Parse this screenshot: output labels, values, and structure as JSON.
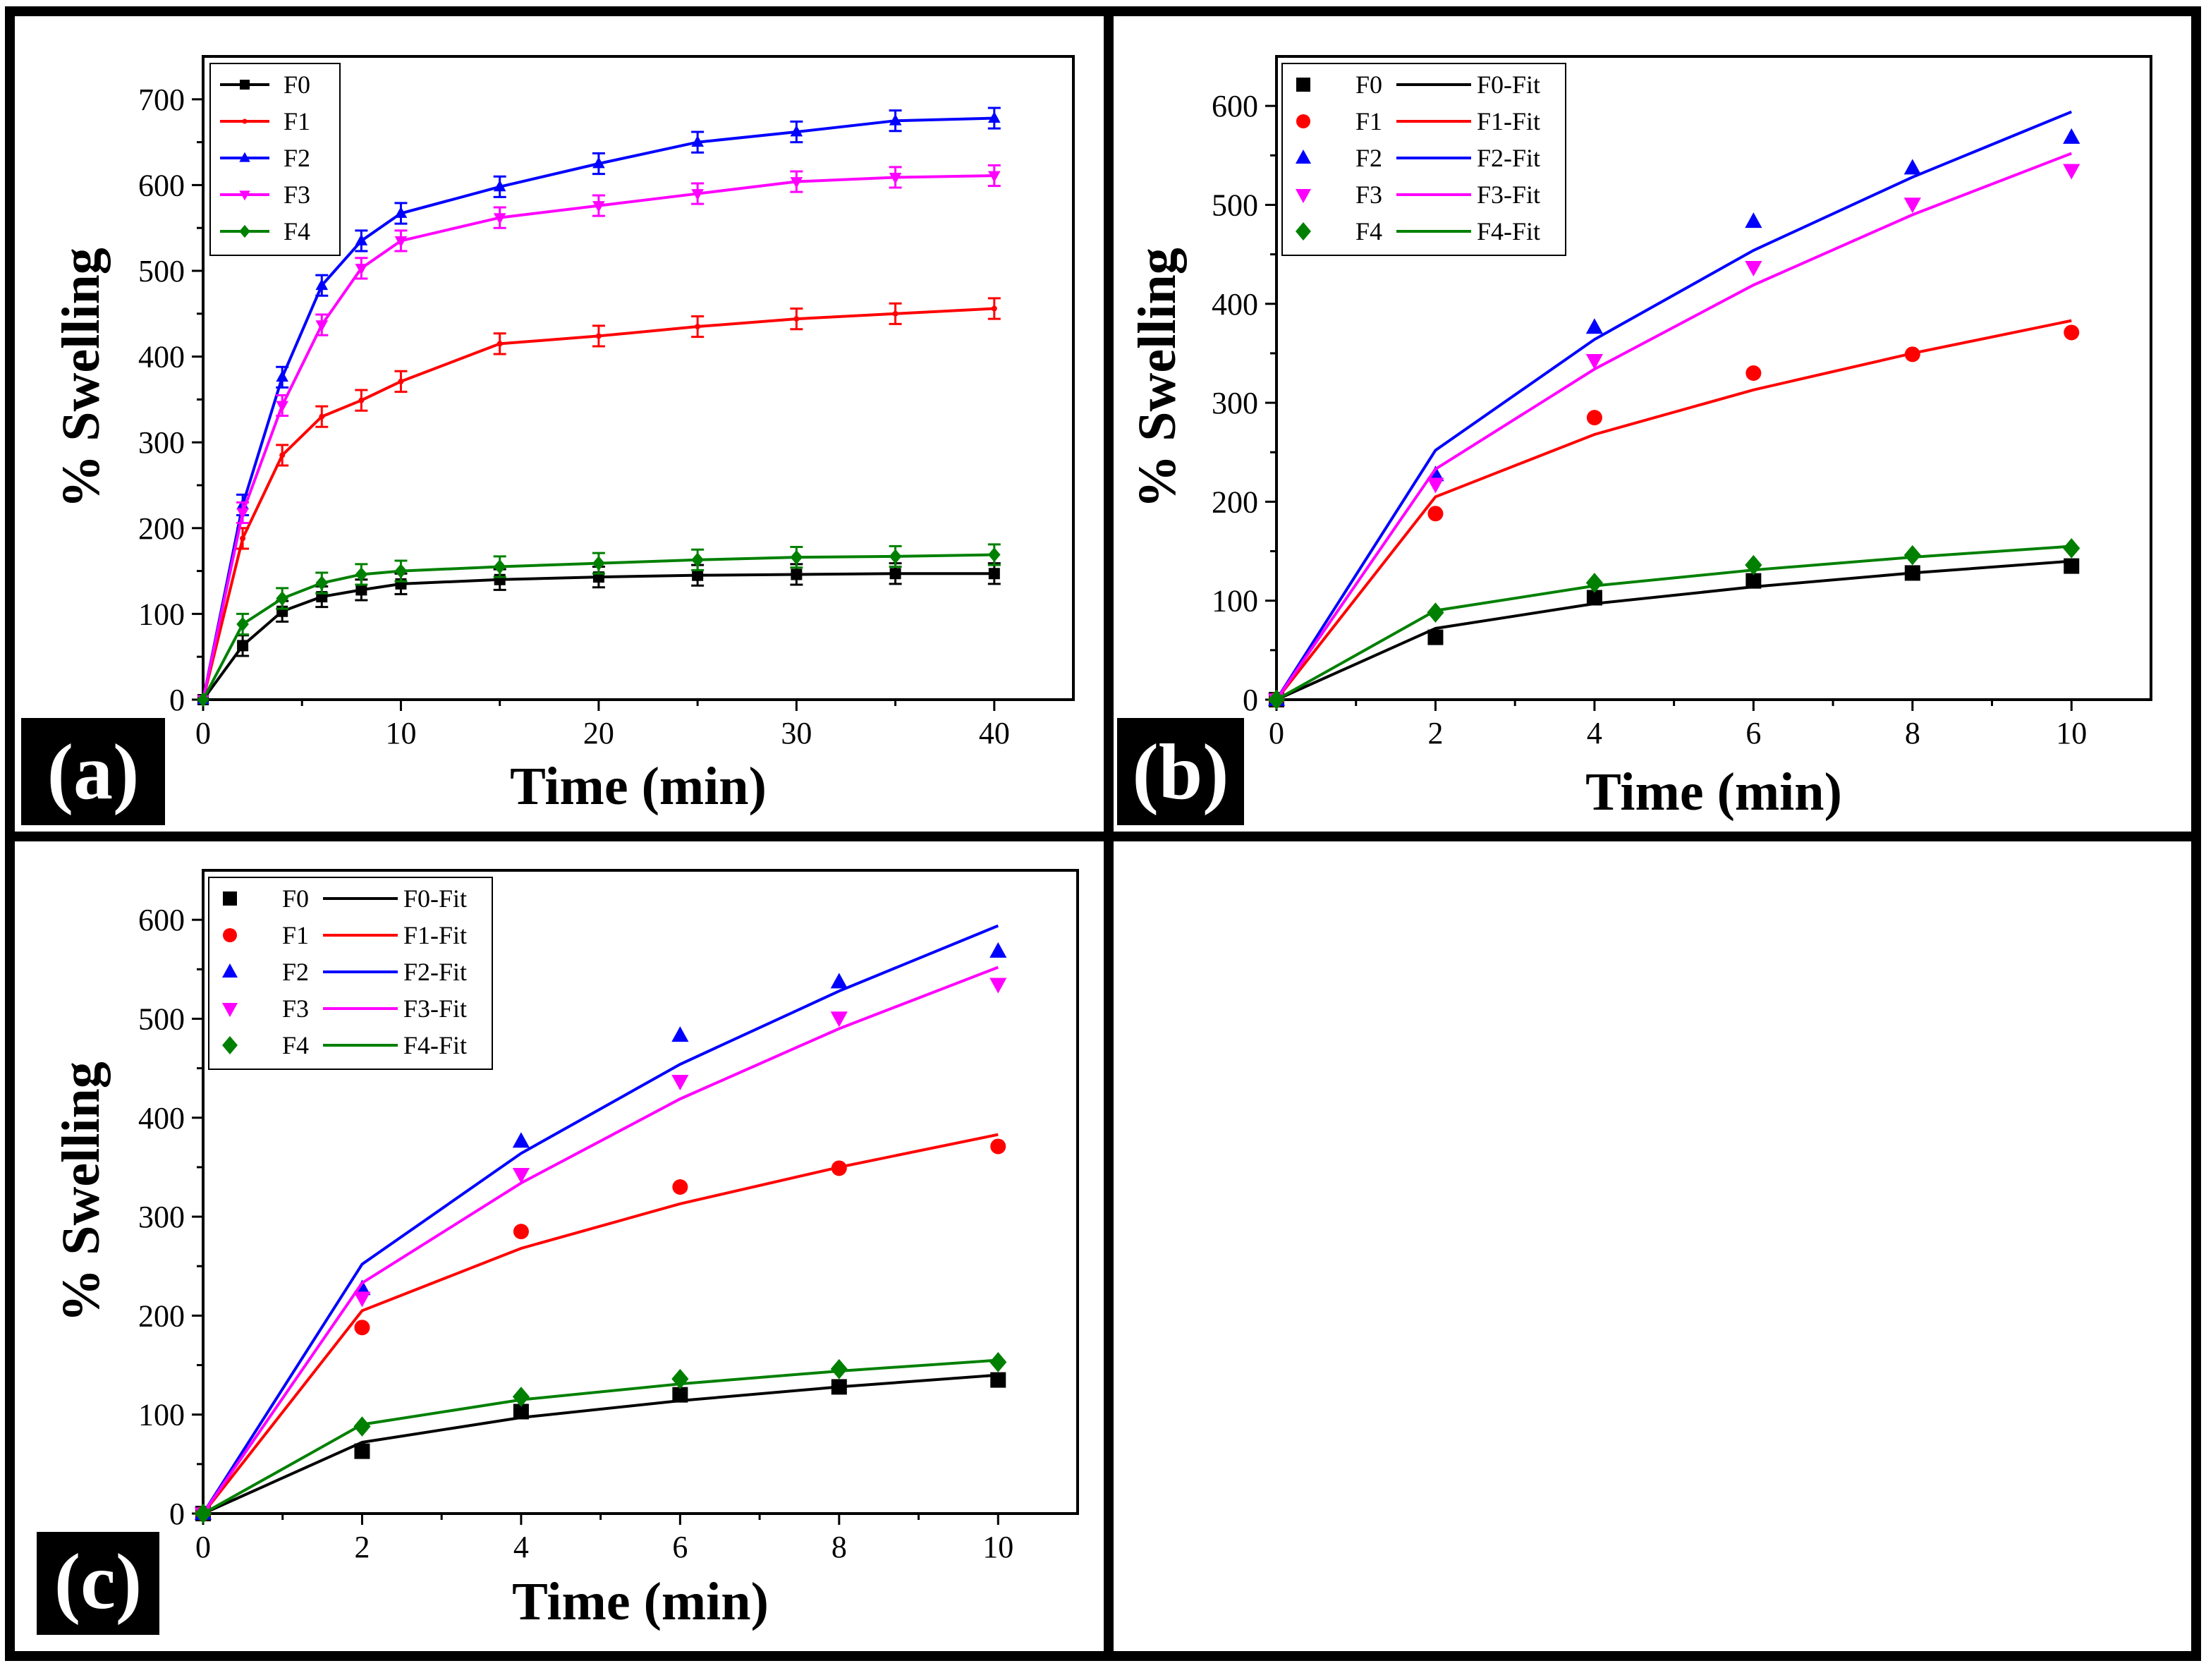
{
  "colors": {
    "F0": "#000000",
    "F1": "#ff0000",
    "F2": "#0000ff",
    "F3": "#ff00ff",
    "F4": "#008000"
  },
  "chart_data": [
    {
      "type": "line",
      "panel_label": "(a)",
      "xlabel": "Time (min)",
      "ylabel": "% Swelling",
      "xlim": [
        0,
        44
      ],
      "ylim": [
        0,
        750
      ],
      "xticks": [
        0,
        10,
        20,
        30,
        40
      ],
      "yticks": [
        0,
        100,
        200,
        300,
        400,
        500,
        600,
        700
      ],
      "legend_position": "top-left",
      "x": [
        0,
        2,
        4,
        6,
        8,
        10,
        15,
        20,
        25,
        30,
        35,
        40
      ],
      "series": [
        {
          "name": "F0",
          "label": "F0",
          "values": [
            0,
            63,
            103,
            120,
            128,
            135,
            140,
            143,
            145,
            146,
            147,
            147
          ],
          "error": 12
        },
        {
          "name": "F1",
          "label": "F1",
          "values": [
            0,
            188,
            285,
            330,
            349,
            371,
            415,
            424,
            435,
            444,
            450,
            456
          ],
          "error": 12
        },
        {
          "name": "F2",
          "label": "F2",
          "values": [
            0,
            227,
            376,
            483,
            535,
            567,
            598,
            625,
            650,
            662,
            675,
            678
          ],
          "error": 12
        },
        {
          "name": "F3",
          "label": "F3",
          "values": [
            0,
            218,
            343,
            437,
            503,
            535,
            562,
            576,
            590,
            604,
            609,
            611
          ],
          "error": 12
        },
        {
          "name": "F4",
          "label": "F4",
          "values": [
            0,
            88,
            118,
            136,
            146,
            150,
            155,
            159,
            163,
            166,
            167,
            169
          ],
          "error": 12
        }
      ]
    },
    {
      "type": "scatter",
      "panel_label": "(b)",
      "xlabel": "Time (min)",
      "ylabel": "% Swelling",
      "xlim": [
        0,
        11
      ],
      "ylim": [
        0,
        650
      ],
      "xticks": [
        0,
        2,
        4,
        6,
        8,
        10
      ],
      "yticks": [
        0,
        100,
        200,
        300,
        400,
        500,
        600
      ],
      "legend_position": "top-left",
      "x": [
        0,
        2,
        4,
        6,
        8,
        10
      ],
      "series": [
        {
          "name": "F0",
          "label": "F0",
          "fit_label": "F0-Fit",
          "marker": "square",
          "values": [
            0,
            63,
            103,
            120,
            128,
            135
          ],
          "fit": [
            0,
            72,
            97,
            114,
            128,
            140
          ]
        },
        {
          "name": "F1",
          "label": "F1",
          "fit_label": "F1-Fit",
          "marker": "circle",
          "values": [
            0,
            188,
            285,
            330,
            349,
            371
          ],
          "fit": [
            0,
            205,
            268,
            313,
            350,
            383
          ]
        },
        {
          "name": "F2",
          "label": "F2",
          "fit_label": "F2-Fit",
          "marker": "triangle-up",
          "values": [
            0,
            227,
            376,
            483,
            537,
            568
          ],
          "fit": [
            0,
            252,
            364,
            454,
            528,
            594
          ]
        },
        {
          "name": "F3",
          "label": "F3",
          "fit_label": "F3-Fit",
          "marker": "triangle-down",
          "values": [
            0,
            218,
            343,
            437,
            501,
            535
          ],
          "fit": [
            0,
            233,
            334,
            419,
            490,
            552
          ]
        },
        {
          "name": "F4",
          "label": "F4",
          "fit_label": "F4-Fit",
          "marker": "diamond",
          "values": [
            0,
            88,
            118,
            136,
            146,
            153
          ],
          "fit": [
            0,
            90,
            115,
            131,
            144,
            155
          ]
        }
      ]
    },
    {
      "type": "scatter",
      "panel_label": "(c)",
      "xlabel": "Time (min)",
      "ylabel": "% Swelling",
      "xlim": [
        0,
        11
      ],
      "ylim": [
        0,
        650
      ],
      "xticks": [
        0,
        2,
        4,
        6,
        8,
        10
      ],
      "yticks": [
        0,
        100,
        200,
        300,
        400,
        500,
        600
      ],
      "legend_position": "top-left",
      "x": [
        0,
        2,
        4,
        6,
        8,
        10
      ],
      "series": [
        {
          "name": "F0",
          "label": "F0",
          "fit_label": "F0-Fit",
          "marker": "square",
          "values": [
            0,
            63,
            103,
            120,
            128,
            135
          ],
          "fit": [
            0,
            72,
            97,
            114,
            128,
            140
          ]
        },
        {
          "name": "F1",
          "label": "F1",
          "fit_label": "F1-Fit",
          "marker": "circle",
          "values": [
            0,
            188,
            285,
            330,
            349,
            371
          ],
          "fit": [
            0,
            205,
            268,
            313,
            350,
            383
          ]
        },
        {
          "name": "F2",
          "label": "F2",
          "fit_label": "F2-Fit",
          "marker": "triangle-up",
          "values": [
            0,
            227,
            376,
            483,
            537,
            568
          ],
          "fit": [
            0,
            252,
            364,
            454,
            528,
            594
          ]
        },
        {
          "name": "F3",
          "label": "F3",
          "fit_label": "F3-Fit",
          "marker": "triangle-down",
          "values": [
            0,
            218,
            343,
            437,
            501,
            535
          ],
          "fit": [
            0,
            233,
            334,
            419,
            490,
            552
          ]
        },
        {
          "name": "F4",
          "label": "F4",
          "fit_label": "F4-Fit",
          "marker": "diamond",
          "values": [
            0,
            88,
            118,
            136,
            146,
            153
          ],
          "fit": [
            0,
            90,
            115,
            131,
            144,
            155
          ]
        }
      ]
    }
  ]
}
